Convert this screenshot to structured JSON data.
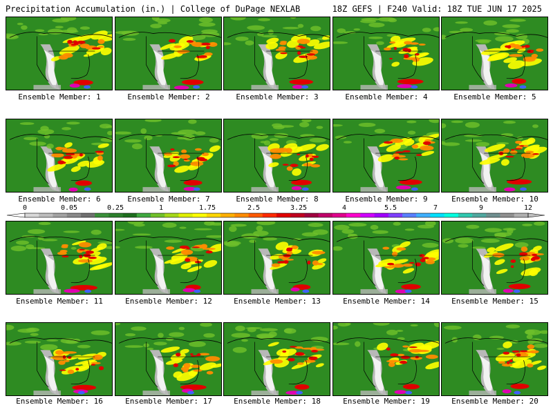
{
  "header": {
    "left_title": "Precipitation Accumulation (in.) | College of DuPage NEXLAB",
    "right_title": "18Z GEFS | F240 Valid: 18Z TUE JUN 17 2025"
  },
  "colorbar": {
    "labels": [
      "0",
      "0.05",
      "0.25",
      "1",
      "1.75",
      "2.5",
      "3.25",
      "4",
      "5.5",
      "7",
      "9",
      "12"
    ],
    "colors": [
      "#d8d8d8",
      "#bdbdbd",
      "#a3a3a3",
      "#8a8a8a",
      "#707070",
      "#3a8f3a",
      "#2c7f2c",
      "#1e6e1e",
      "#3fa83f",
      "#71c02a",
      "#a6d81a",
      "#e0f000",
      "#ffff00",
      "#ffd700",
      "#ffb000",
      "#ff8c00",
      "#ff5a00",
      "#ff2a00",
      "#e00000",
      "#c00020",
      "#a00040",
      "#c0006a",
      "#e0008c",
      "#ff00cc",
      "#d000ff",
      "#a000ff",
      "#7f3fff",
      "#5a7fff",
      "#3fb0ff",
      "#00e0ff",
      "#00ffe0",
      "#30c8b0",
      "#50a8a0",
      "#708f90",
      "#909090",
      "#b0b0b0"
    ]
  },
  "panel_caption_prefix": "Ensemble Member: ",
  "members": [
    {
      "label": "Ensemble Member: 1"
    },
    {
      "label": "Ensemble Member: 2"
    },
    {
      "label": "Ensemble Member: 3"
    },
    {
      "label": "Ensemble Member: 4"
    },
    {
      "label": "Ensemble Member: 5"
    },
    {
      "label": "Ensemble Member: 6"
    },
    {
      "label": "Ensemble Member: 7"
    },
    {
      "label": "Ensemble Member: 8"
    },
    {
      "label": "Ensemble Member: 9"
    },
    {
      "label": "Ensemble Member: 10"
    },
    {
      "label": "Ensemble Member: 11"
    },
    {
      "label": "Ensemble Member: 12"
    },
    {
      "label": "Ensemble Member: 13"
    },
    {
      "label": "Ensemble Member: 14"
    },
    {
      "label": "Ensemble Member: 15"
    },
    {
      "label": "Ensemble Member: 16"
    },
    {
      "label": "Ensemble Member: 17"
    },
    {
      "label": "Ensemble Member: 18"
    },
    {
      "label": "Ensemble Member: 19"
    },
    {
      "label": "Ensemble Member: 20"
    }
  ],
  "map_colors": {
    "base_green": "#2e8b22",
    "dry_white": "#f2f2f2",
    "dry_gray": "#b8b8b8",
    "light_green": "#6fc02a",
    "yellow": "#ffff00",
    "orange": "#ff8c00",
    "red": "#e00000",
    "magenta": "#e000b0",
    "blue": "#4060ff",
    "border": "#000000"
  }
}
